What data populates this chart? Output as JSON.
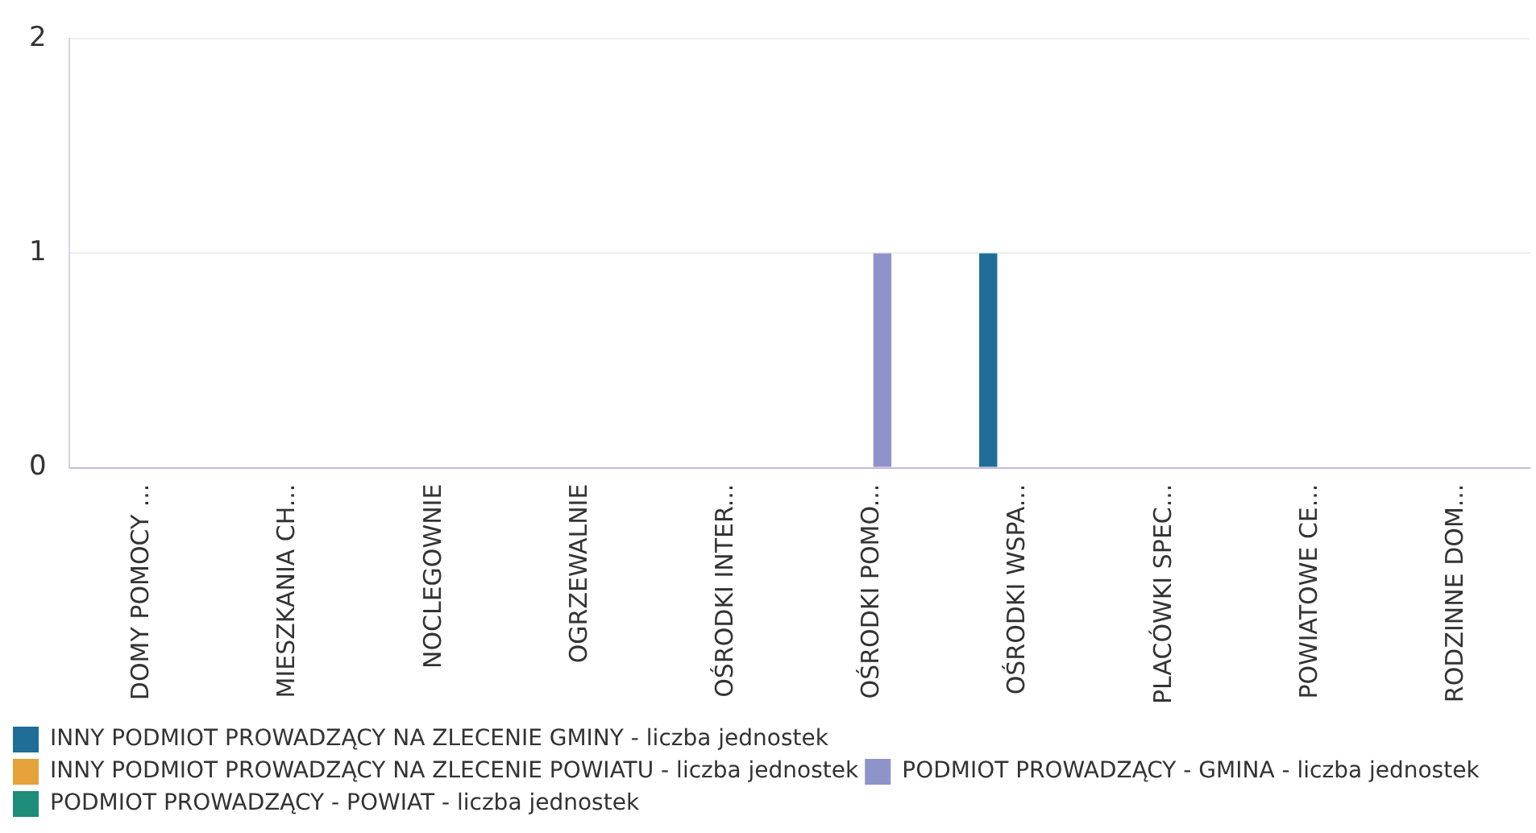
{
  "chart_data": {
    "type": "bar",
    "categories": [
      "DOMY POMOCY ...",
      "MIESZKANIA CH...",
      "NOCLEGOWNIE",
      "OGRZEWALNIE",
      "OŚRODKI INTER...",
      "OŚRODKI POMO...",
      "OŚRODKI WSPA...",
      "PLACÓWKI SPEC...",
      "POWIATOWE CE...",
      "RODZINNE DOM..."
    ],
    "series": [
      {
        "name": "INNY PODMIOT PROWADZĄCY NA ZLECENIE GMINY - liczba jednostek",
        "color": "#1f6e97",
        "values": [
          0,
          0,
          0,
          0,
          0,
          0,
          1,
          0,
          0,
          0
        ]
      },
      {
        "name": "INNY PODMIOT PROWADZĄCY NA ZLECENIE POWIATU - liczba jednostek",
        "color": "#e5a23a",
        "values": [
          0,
          0,
          0,
          0,
          0,
          0,
          0,
          0,
          0,
          0
        ]
      },
      {
        "name": "PODMIOT PROWADZĄCY - GMINA - liczba jednostek",
        "color": "#8e93c9",
        "values": [
          0,
          0,
          0,
          0,
          0,
          1,
          0,
          0,
          0,
          0
        ]
      },
      {
        "name": "PODMIOT PROWADZĄCY - POWIAT - liczba jednostek",
        "color": "#1e8c78",
        "values": [
          0,
          0,
          0,
          0,
          0,
          0,
          0,
          0,
          0,
          0
        ]
      }
    ],
    "ylim": [
      0,
      2
    ],
    "yticks": [
      0,
      1,
      2
    ],
    "grid": "y",
    "legend": "bottom"
  }
}
